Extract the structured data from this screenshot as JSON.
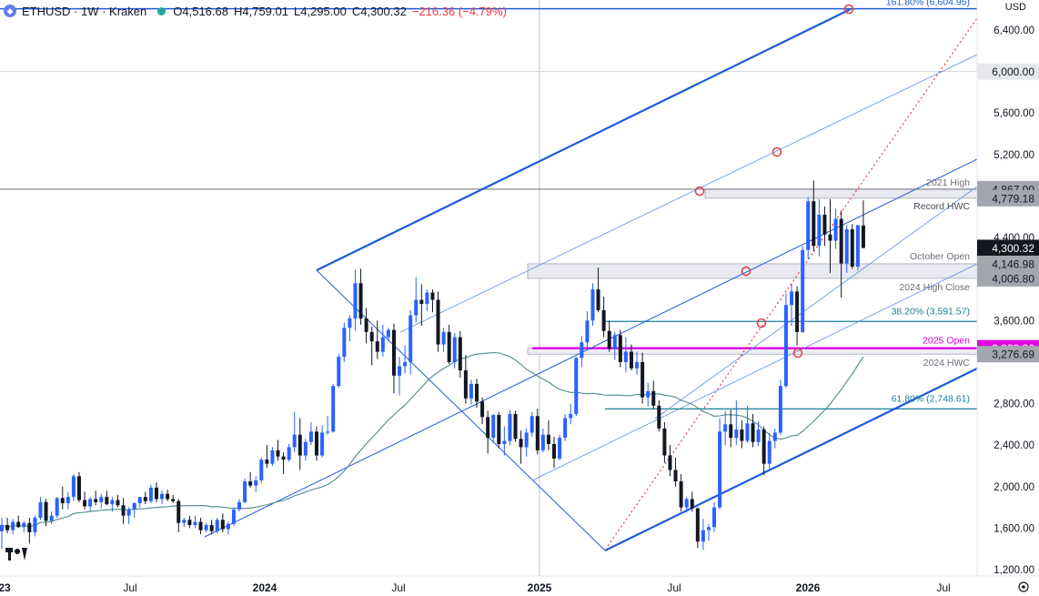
{
  "header": {
    "symbol": "ETHUSD · 1W · Kraken",
    "open_label": "O",
    "open": "4,516.68",
    "high_label": "H",
    "high": "4,759.01",
    "low_label": "L",
    "low": "4,295.00",
    "close_label": "C",
    "close": "4,300.32",
    "change": "−216.36 (−4.79%)",
    "currency": "USD"
  },
  "colors": {
    "up": "#2962ff",
    "down": "#131722",
    "channel": "#1e5bd6",
    "accent_magenta": "#e000e0",
    "fib": "#1a7f9c",
    "ma": "#4f8a8b",
    "dotted": "#e0424a"
  },
  "chart_data": {
    "type": "candlestick",
    "symbol": "ETHUSD",
    "interval": "1W",
    "exchange": "Kraken",
    "y_axis": {
      "ticks": [
        1200,
        1600,
        2000,
        2400,
        2800,
        3200,
        3600,
        4000,
        4400,
        4800,
        5200,
        5600,
        6000,
        6400
      ],
      "labels": [
        "1,200.00",
        "1,600.00",
        "2,000.00",
        "2,400.00",
        "2,800.00",
        "3,200.00",
        "3,600.00",
        "4,000.00",
        "4,400.00",
        "4,800.00",
        "5,200.00",
        "5,600.00",
        "6,000.00",
        "6,400.00"
      ],
      "range": [
        1150,
        6700
      ]
    },
    "x_axis": {
      "labels": [
        "23",
        "Jul",
        "2024",
        "Jul",
        "2025",
        "Jul",
        "2026",
        "Jul"
      ]
    },
    "price_tags": [
      {
        "value": 4867.0,
        "text": "4,867.00",
        "style": "gray"
      },
      {
        "value": 4779.18,
        "text": "4,779.18",
        "style": "gray"
      },
      {
        "value": 4300.32,
        "text": "4,300.32",
        "style": "current"
      },
      {
        "value": 4146.98,
        "text": "4,146.98",
        "style": "gray"
      },
      {
        "value": 4006.8,
        "text": "4,006.80",
        "style": "gray"
      },
      {
        "value": 3333.3,
        "text": "3,333.30",
        "style": "magenta"
      },
      {
        "value": 3276.69,
        "text": "3,276.69",
        "style": "gray"
      },
      {
        "value": 6000.0,
        "text": "6,000.00",
        "style": "light"
      }
    ],
    "levels": [
      {
        "label": "161.80% (6,604.95)",
        "value": 6604.95
      },
      {
        "label": "2021 High",
        "value": 4867.0
      },
      {
        "label": "Record HWC",
        "value": 4779.18
      },
      {
        "label": "October Open",
        "value": 4146.98
      },
      {
        "label": "2024 High Close",
        "value": 4006.8
      },
      {
        "label": "38.20% (3,591.57)",
        "value": 3591.57
      },
      {
        "label": "2025 Open",
        "value": 3333.3
      },
      {
        "label": "2024 HWC",
        "value": 3276.69
      },
      {
        "label": "61.80% (2,748.61)",
        "value": 2748.61
      }
    ],
    "candles": [
      {
        "o": 1570,
        "h": 1700,
        "l": 1400,
        "c": 1630
      },
      {
        "o": 1630,
        "h": 1700,
        "l": 1550,
        "c": 1580
      },
      {
        "o": 1580,
        "h": 1690,
        "l": 1540,
        "c": 1660
      },
      {
        "o": 1660,
        "h": 1720,
        "l": 1600,
        "c": 1610
      },
      {
        "o": 1610,
        "h": 1670,
        "l": 1560,
        "c": 1650
      },
      {
        "o": 1650,
        "h": 1700,
        "l": 1450,
        "c": 1560
      },
      {
        "o": 1560,
        "h": 1720,
        "l": 1520,
        "c": 1700
      },
      {
        "o": 1700,
        "h": 1900,
        "l": 1680,
        "c": 1850
      },
      {
        "o": 1850,
        "h": 1880,
        "l": 1620,
        "c": 1670
      },
      {
        "o": 1670,
        "h": 1760,
        "l": 1640,
        "c": 1720
      },
      {
        "o": 1720,
        "h": 1900,
        "l": 1700,
        "c": 1890
      },
      {
        "o": 1890,
        "h": 2000,
        "l": 1780,
        "c": 1840
      },
      {
        "o": 1840,
        "h": 1950,
        "l": 1780,
        "c": 1900
      },
      {
        "o": 1900,
        "h": 2120,
        "l": 1860,
        "c": 2100
      },
      {
        "o": 2100,
        "h": 2140,
        "l": 1850,
        "c": 1870
      },
      {
        "o": 1870,
        "h": 1950,
        "l": 1780,
        "c": 1810
      },
      {
        "o": 1810,
        "h": 1900,
        "l": 1760,
        "c": 1880
      },
      {
        "o": 1880,
        "h": 1960,
        "l": 1820,
        "c": 1850
      },
      {
        "o": 1850,
        "h": 1930,
        "l": 1790,
        "c": 1900
      },
      {
        "o": 1900,
        "h": 1960,
        "l": 1820,
        "c": 1830
      },
      {
        "o": 1830,
        "h": 1900,
        "l": 1760,
        "c": 1870
      },
      {
        "o": 1870,
        "h": 1920,
        "l": 1800,
        "c": 1820
      },
      {
        "o": 1820,
        "h": 1890,
        "l": 1640,
        "c": 1720
      },
      {
        "o": 1720,
        "h": 1800,
        "l": 1640,
        "c": 1780
      },
      {
        "o": 1780,
        "h": 1850,
        "l": 1700,
        "c": 1840
      },
      {
        "o": 1840,
        "h": 1900,
        "l": 1800,
        "c": 1900
      },
      {
        "o": 1900,
        "h": 1950,
        "l": 1830,
        "c": 1860
      },
      {
        "o": 1860,
        "h": 2020,
        "l": 1840,
        "c": 1990
      },
      {
        "o": 1990,
        "h": 2040,
        "l": 1850,
        "c": 1880
      },
      {
        "o": 1880,
        "h": 1960,
        "l": 1830,
        "c": 1930
      },
      {
        "o": 1930,
        "h": 1970,
        "l": 1860,
        "c": 1880
      },
      {
        "o": 1880,
        "h": 1920,
        "l": 1840,
        "c": 1860
      },
      {
        "o": 1860,
        "h": 1880,
        "l": 1560,
        "c": 1650
      },
      {
        "o": 1650,
        "h": 1700,
        "l": 1610,
        "c": 1680
      },
      {
        "o": 1680,
        "h": 1720,
        "l": 1600,
        "c": 1630
      },
      {
        "o": 1630,
        "h": 1720,
        "l": 1600,
        "c": 1660
      },
      {
        "o": 1660,
        "h": 1700,
        "l": 1540,
        "c": 1580
      },
      {
        "o": 1580,
        "h": 1650,
        "l": 1560,
        "c": 1630
      },
      {
        "o": 1630,
        "h": 1680,
        "l": 1540,
        "c": 1570
      },
      {
        "o": 1570,
        "h": 1700,
        "l": 1550,
        "c": 1680
      },
      {
        "o": 1680,
        "h": 1740,
        "l": 1560,
        "c": 1590
      },
      {
        "o": 1590,
        "h": 1660,
        "l": 1540,
        "c": 1640
      },
      {
        "o": 1640,
        "h": 1800,
        "l": 1620,
        "c": 1780
      },
      {
        "o": 1780,
        "h": 1880,
        "l": 1760,
        "c": 1850
      },
      {
        "o": 1850,
        "h": 2080,
        "l": 1840,
        "c": 2050
      },
      {
        "o": 2050,
        "h": 2140,
        "l": 1990,
        "c": 2010
      },
      {
        "o": 2010,
        "h": 2100,
        "l": 1950,
        "c": 2060
      },
      {
        "o": 2060,
        "h": 2280,
        "l": 2030,
        "c": 2260
      },
      {
        "o": 2260,
        "h": 2400,
        "l": 2180,
        "c": 2220
      },
      {
        "o": 2220,
        "h": 2380,
        "l": 2200,
        "c": 2350
      },
      {
        "o": 2350,
        "h": 2450,
        "l": 2250,
        "c": 2290
      },
      {
        "o": 2290,
        "h": 2330,
        "l": 2120,
        "c": 2260
      },
      {
        "o": 2260,
        "h": 2410,
        "l": 2240,
        "c": 2380
      },
      {
        "o": 2380,
        "h": 2720,
        "l": 2330,
        "c": 2500
      },
      {
        "o": 2500,
        "h": 2660,
        "l": 2160,
        "c": 2300
      },
      {
        "o": 2300,
        "h": 2460,
        "l": 2250,
        "c": 2430
      },
      {
        "o": 2430,
        "h": 2620,
        "l": 2400,
        "c": 2530
      },
      {
        "o": 2530,
        "h": 2580,
        "l": 2250,
        "c": 2300
      },
      {
        "o": 2300,
        "h": 2590,
        "l": 2280,
        "c": 2520
      },
      {
        "o": 2520,
        "h": 2680,
        "l": 2500,
        "c": 2530
      },
      {
        "o": 2530,
        "h": 2990,
        "l": 2520,
        "c": 2970
      },
      {
        "o": 2970,
        "h": 3280,
        "l": 2950,
        "c": 3250
      },
      {
        "o": 3250,
        "h": 3580,
        "l": 3200,
        "c": 3530
      },
      {
        "o": 3530,
        "h": 3650,
        "l": 3400,
        "c": 3620
      },
      {
        "o": 3620,
        "h": 4090,
        "l": 3500,
        "c": 3960
      },
      {
        "o": 3960,
        "h": 4100,
        "l": 3560,
        "c": 3620
      },
      {
        "o": 3620,
        "h": 3720,
        "l": 3380,
        "c": 3490
      },
      {
        "o": 3490,
        "h": 3540,
        "l": 3170,
        "c": 3400
      },
      {
        "o": 3400,
        "h": 3600,
        "l": 3230,
        "c": 3300
      },
      {
        "o": 3300,
        "h": 3560,
        "l": 3250,
        "c": 3440
      },
      {
        "o": 3440,
        "h": 3530,
        "l": 3400,
        "c": 3510
      },
      {
        "o": 3510,
        "h": 3570,
        "l": 2900,
        "c": 3070
      },
      {
        "o": 3070,
        "h": 3250,
        "l": 2880,
        "c": 3160
      },
      {
        "o": 3160,
        "h": 3360,
        "l": 3090,
        "c": 3200
      },
      {
        "o": 3200,
        "h": 3700,
        "l": 3080,
        "c": 3650
      },
      {
        "o": 3650,
        "h": 4020,
        "l": 3580,
        "c": 3800
      },
      {
        "o": 3800,
        "h": 3950,
        "l": 3550,
        "c": 3760
      },
      {
        "o": 3760,
        "h": 3900,
        "l": 3690,
        "c": 3870
      },
      {
        "o": 3870,
        "h": 3900,
        "l": 3680,
        "c": 3800
      },
      {
        "o": 3800,
        "h": 3880,
        "l": 3300,
        "c": 3370
      },
      {
        "o": 3370,
        "h": 3530,
        "l": 3300,
        "c": 3490
      },
      {
        "o": 3490,
        "h": 3560,
        "l": 3180,
        "c": 3200
      },
      {
        "o": 3200,
        "h": 3480,
        "l": 3140,
        "c": 3440
      },
      {
        "o": 3440,
        "h": 3500,
        "l": 3050,
        "c": 3120
      },
      {
        "o": 3120,
        "h": 3270,
        "l": 2800,
        "c": 2850
      },
      {
        "o": 2850,
        "h": 3030,
        "l": 2790,
        "c": 2990
      },
      {
        "o": 2990,
        "h": 3040,
        "l": 2760,
        "c": 2820
      },
      {
        "o": 2820,
        "h": 2860,
        "l": 2600,
        "c": 2670
      },
      {
        "o": 2670,
        "h": 2730,
        "l": 2320,
        "c": 2470
      },
      {
        "o": 2470,
        "h": 2700,
        "l": 2420,
        "c": 2690
      },
      {
        "o": 2690,
        "h": 2720,
        "l": 2370,
        "c": 2410
      },
      {
        "o": 2410,
        "h": 2580,
        "l": 2300,
        "c": 2440
      },
      {
        "o": 2440,
        "h": 2740,
        "l": 2400,
        "c": 2700
      },
      {
        "o": 2700,
        "h": 2730,
        "l": 2430,
        "c": 2460
      },
      {
        "o": 2460,
        "h": 2540,
        "l": 2220,
        "c": 2380
      },
      {
        "o": 2380,
        "h": 2560,
        "l": 2290,
        "c": 2520
      },
      {
        "o": 2520,
        "h": 2720,
        "l": 2480,
        "c": 2680
      },
      {
        "o": 2680,
        "h": 2750,
        "l": 2310,
        "c": 2350
      },
      {
        "o": 2350,
        "h": 2560,
        "l": 2330,
        "c": 2500
      },
      {
        "o": 2500,
        "h": 2640,
        "l": 2350,
        "c": 2410
      },
      {
        "o": 2410,
        "h": 2480,
        "l": 2180,
        "c": 2270
      },
      {
        "o": 2270,
        "h": 2500,
        "l": 2250,
        "c": 2470
      },
      {
        "o": 2470,
        "h": 2700,
        "l": 2440,
        "c": 2660
      },
      {
        "o": 2660,
        "h": 2800,
        "l": 2600,
        "c": 2700
      },
      {
        "o": 2700,
        "h": 3250,
        "l": 2680,
        "c": 3240
      },
      {
        "o": 3240,
        "h": 3450,
        "l": 3150,
        "c": 3390
      },
      {
        "o": 3390,
        "h": 3690,
        "l": 3320,
        "c": 3600
      },
      {
        "o": 3600,
        "h": 3960,
        "l": 3550,
        "c": 3900
      },
      {
        "o": 3900,
        "h": 4110,
        "l": 3680,
        "c": 3700
      },
      {
        "o": 3700,
        "h": 3830,
        "l": 3440,
        "c": 3500
      },
      {
        "o": 3500,
        "h": 3600,
        "l": 3300,
        "c": 3330
      },
      {
        "o": 3330,
        "h": 3490,
        "l": 3220,
        "c": 3460
      },
      {
        "o": 3460,
        "h": 3510,
        "l": 3150,
        "c": 3200
      },
      {
        "o": 3200,
        "h": 3440,
        "l": 3100,
        "c": 3300
      },
      {
        "o": 3300,
        "h": 3370,
        "l": 3120,
        "c": 3140
      },
      {
        "o": 3140,
        "h": 3300,
        "l": 3080,
        "c": 3200
      },
      {
        "o": 3200,
        "h": 3290,
        "l": 2800,
        "c": 2860
      },
      {
        "o": 2860,
        "h": 3000,
        "l": 2770,
        "c": 2920
      },
      {
        "o": 2920,
        "h": 3020,
        "l": 2750,
        "c": 2780
      },
      {
        "o": 2780,
        "h": 2830,
        "l": 2530,
        "c": 2560
      },
      {
        "o": 2560,
        "h": 2620,
        "l": 2230,
        "c": 2300
      },
      {
        "o": 2300,
        "h": 2400,
        "l": 2100,
        "c": 2160
      },
      {
        "o": 2160,
        "h": 2280,
        "l": 2000,
        "c": 2050
      },
      {
        "o": 2050,
        "h": 2120,
        "l": 1760,
        "c": 1800
      },
      {
        "o": 1800,
        "h": 1900,
        "l": 1750,
        "c": 1880
      },
      {
        "o": 1880,
        "h": 1950,
        "l": 1760,
        "c": 1790
      },
      {
        "o": 1790,
        "h": 1800,
        "l": 1410,
        "c": 1470
      },
      {
        "o": 1470,
        "h": 1690,
        "l": 1390,
        "c": 1580
      },
      {
        "o": 1580,
        "h": 1640,
        "l": 1480,
        "c": 1610
      },
      {
        "o": 1610,
        "h": 1850,
        "l": 1560,
        "c": 1800
      },
      {
        "o": 1800,
        "h": 2660,
        "l": 1780,
        "c": 2530
      },
      {
        "o": 2530,
        "h": 2730,
        "l": 2400,
        "c": 2600
      },
      {
        "o": 2600,
        "h": 2740,
        "l": 2380,
        "c": 2470
      },
      {
        "o": 2470,
        "h": 2830,
        "l": 2400,
        "c": 2550
      },
      {
        "o": 2550,
        "h": 2640,
        "l": 2370,
        "c": 2440
      },
      {
        "o": 2440,
        "h": 2780,
        "l": 2420,
        "c": 2610
      },
      {
        "o": 2610,
        "h": 2700,
        "l": 2380,
        "c": 2430
      },
      {
        "o": 2430,
        "h": 2630,
        "l": 2390,
        "c": 2550
      },
      {
        "o": 2550,
        "h": 2580,
        "l": 2110,
        "c": 2220
      },
      {
        "o": 2220,
        "h": 2520,
        "l": 2150,
        "c": 2440
      },
      {
        "o": 2440,
        "h": 2560,
        "l": 2370,
        "c": 2520
      },
      {
        "o": 2520,
        "h": 3030,
        "l": 2500,
        "c": 2970
      },
      {
        "o": 2970,
        "h": 3860,
        "l": 2950,
        "c": 3750
      },
      {
        "o": 3750,
        "h": 3950,
        "l": 3550,
        "c": 3880
      },
      {
        "o": 3880,
        "h": 3930,
        "l": 3360,
        "c": 3490
      },
      {
        "o": 3490,
        "h": 4320,
        "l": 3480,
        "c": 4280
      },
      {
        "o": 4280,
        "h": 4790,
        "l": 4190,
        "c": 4750
      },
      {
        "o": 4750,
        "h": 4950,
        "l": 4270,
        "c": 4320
      },
      {
        "o": 4320,
        "h": 4770,
        "l": 4220,
        "c": 4620
      },
      {
        "o": 4620,
        "h": 4700,
        "l": 4320,
        "c": 4430
      },
      {
        "o": 4430,
        "h": 4770,
        "l": 4060,
        "c": 4370
      },
      {
        "o": 4370,
        "h": 4680,
        "l": 4290,
        "c": 4580
      },
      {
        "o": 4580,
        "h": 4660,
        "l": 3820,
        "c": 4150
      },
      {
        "o": 4150,
        "h": 4520,
        "l": 4060,
        "c": 4480
      },
      {
        "o": 4480,
        "h": 4530,
        "l": 4100,
        "c": 4120
      },
      {
        "o": 4120,
        "h": 4480,
        "l": 4080,
        "c": 4520
      },
      {
        "o": 4516.68,
        "h": 4759.01,
        "l": 4295,
        "c": 4300.32
      }
    ]
  }
}
